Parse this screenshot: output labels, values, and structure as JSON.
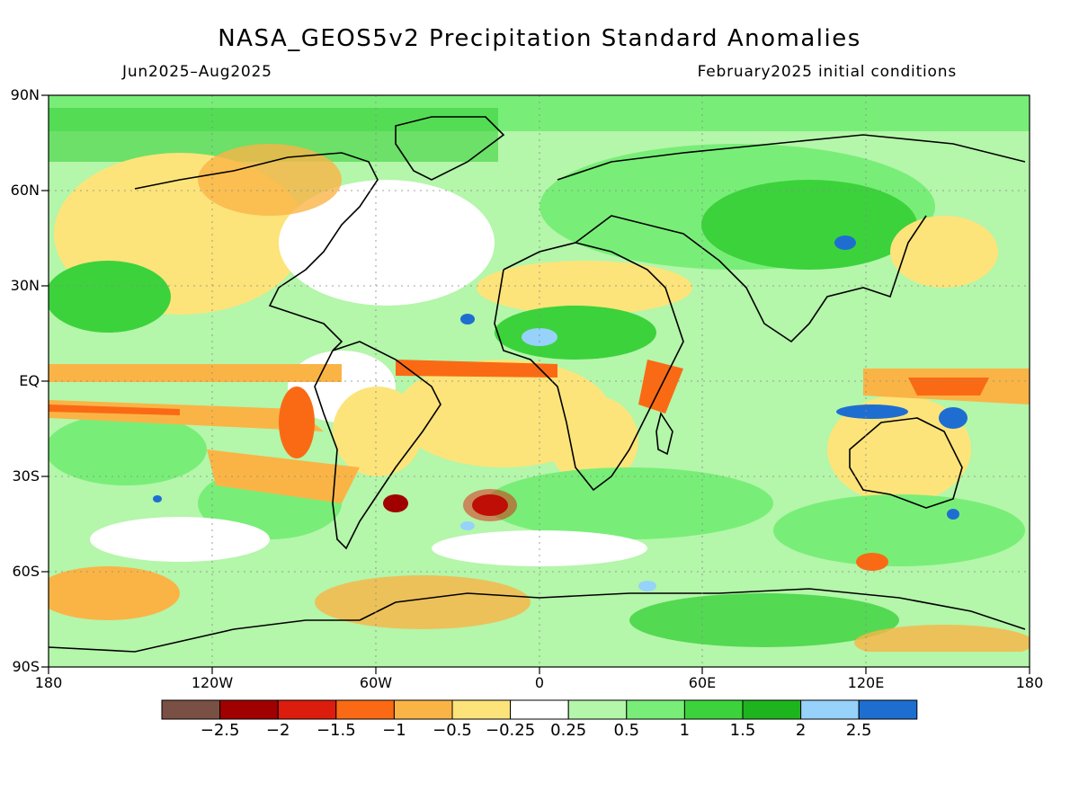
{
  "title": "NASA_GEOS5v2 Precipitation Standard Anomalies",
  "subtitle_left": "Jun2025–Aug2025",
  "subtitle_right": "February2025 initial conditions",
  "lat_labels": [
    "90N",
    "60N",
    "30N",
    "EQ",
    "30S",
    "60S",
    "90S"
  ],
  "lon_labels": [
    "180",
    "120W",
    "60W",
    "0",
    "60E",
    "120E",
    "180"
  ],
  "colorbar": {
    "colors": [
      "#7a4f44",
      "#a00000",
      "#dc1c0c",
      "#fa6a14",
      "#fab446",
      "#fce47a",
      "#ffffff",
      "#b4f6aa",
      "#78ee78",
      "#3cd23c",
      "#1eb41e",
      "#96d2fa",
      "#1e6ed2"
    ],
    "labels": [
      "−2.5",
      "−2",
      "−1.5",
      "−1",
      "−0.5",
      "−0.25",
      "0.25",
      "0.5",
      "1",
      "1.5",
      "2",
      "2.5"
    ]
  }
}
